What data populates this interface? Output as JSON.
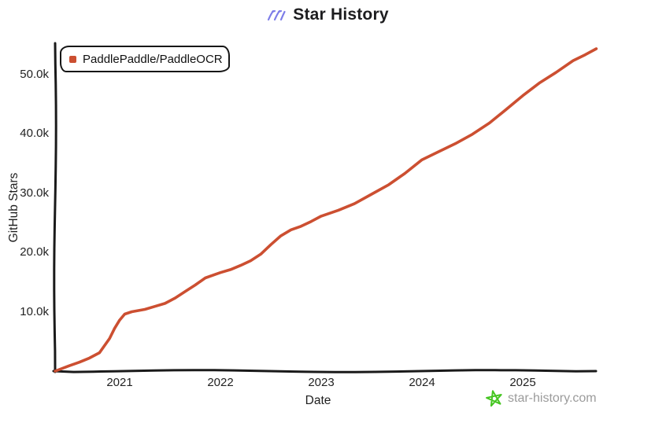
{
  "header": {
    "title": "Star History",
    "icon": "sketch-strokes-icon"
  },
  "footer": {
    "watermark": "star-history.com",
    "icon": "star-icon"
  },
  "colors": {
    "accent": "#cc4f31",
    "axis": "#1a1a1a",
    "title_icon": "#7d7de8",
    "star_icon": "#45c521",
    "watermark_text": "#9b9b9b"
  },
  "chart_data": {
    "type": "line",
    "title": "Star History",
    "xlabel": "Date",
    "ylabel": "GitHub Stars",
    "style": "hand-drawn-xkcd",
    "grid": false,
    "legend_position": "top-left",
    "x_ticks": [
      "2021",
      "2022",
      "2023",
      "2024",
      "2025"
    ],
    "y_ticks": [
      "10.0k",
      "20.0k",
      "30.0k",
      "40.0k",
      "50.0k"
    ],
    "x_range": [
      2020.36,
      2025.78
    ],
    "y_range": [
      0,
      55500
    ],
    "series": [
      {
        "name": "PaddlePaddle/PaddleOCR",
        "color": "#cc4f31",
        "x": [
          2020.36,
          2020.5,
          2020.6,
          2020.7,
          2020.8,
          2020.9,
          2020.95,
          2021.0,
          2021.05,
          2021.12,
          2021.25,
          2021.35,
          2021.45,
          2021.55,
          2021.65,
          2021.75,
          2021.85,
          2021.95,
          2022.0,
          2022.1,
          2022.2,
          2022.3,
          2022.4,
          2022.5,
          2022.6,
          2022.7,
          2022.8,
          2022.9,
          2023.0,
          2023.17,
          2023.33,
          2023.5,
          2023.67,
          2023.83,
          2024.0,
          2024.17,
          2024.33,
          2024.5,
          2024.67,
          2024.83,
          2025.0,
          2025.17,
          2025.33,
          2025.5,
          2025.62,
          2025.73
        ],
        "y": [
          0,
          900,
          1500,
          2200,
          3100,
          5500,
          7200,
          8600,
          9600,
          10000,
          10400,
          10900,
          11400,
          12300,
          13400,
          14500,
          15700,
          16300,
          16600,
          17100,
          17800,
          18600,
          19700,
          21300,
          22800,
          23800,
          24400,
          25200,
          26100,
          27100,
          28200,
          29800,
          31400,
          33300,
          35600,
          37000,
          38300,
          39900,
          41800,
          44000,
          46400,
          48600,
          50300,
          52300,
          53300,
          54300
        ]
      }
    ]
  }
}
